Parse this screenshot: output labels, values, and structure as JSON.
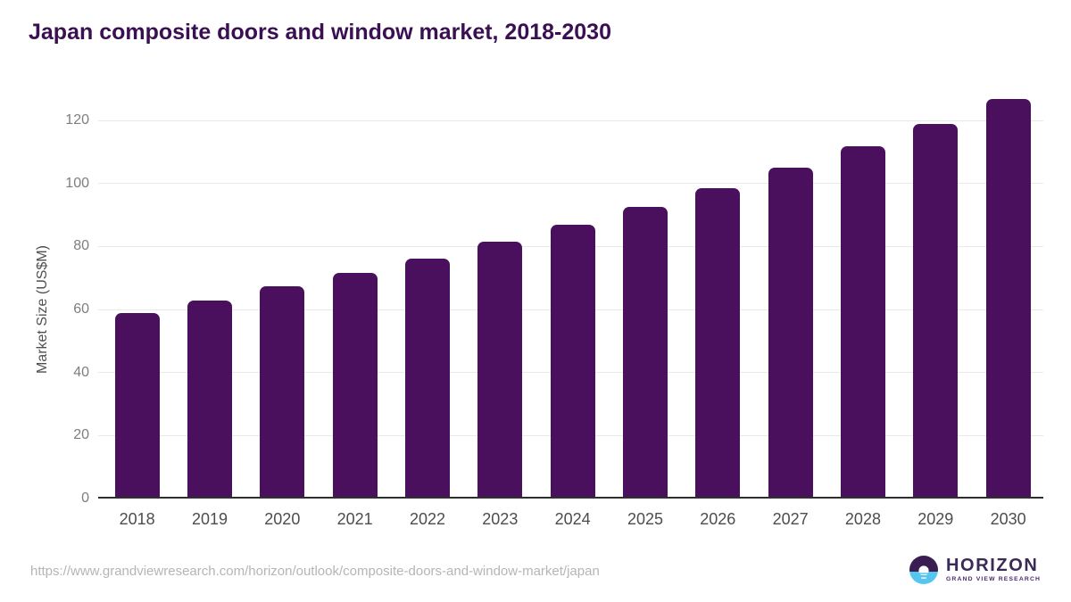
{
  "title": "Japan composite doors and window market, 2018-2030",
  "chart_data": {
    "type": "bar",
    "title": "Japan composite doors and window market, 2018-2030",
    "categories": [
      "2018",
      "2019",
      "2020",
      "2021",
      "2022",
      "2023",
      "2024",
      "2025",
      "2026",
      "2027",
      "2028",
      "2029",
      "2030"
    ],
    "values": [
      58.9,
      62.9,
      67.3,
      71.5,
      76.2,
      81.4,
      86.8,
      92.5,
      98.5,
      105.0,
      111.8,
      118.9,
      126.8
    ],
    "xlabel": "",
    "ylabel": "Market Size (US$M)",
    "ylim": [
      0,
      130
    ],
    "yticks": [
      0,
      20,
      40,
      60,
      80,
      100,
      120
    ],
    "grid": true,
    "legend": false,
    "bar_color": "#4a105e"
  },
  "colors": {
    "title": "#3a1053",
    "bar": "#4a105e",
    "gridline": "#e9e9e9",
    "axis_line": "#2f2f2f",
    "y_tick_text": "#7e7e7e",
    "x_tick_text": "#4d4d4d",
    "url_text": "#b5b5b5",
    "logo_purple": "#3b2a55",
    "logo_dark_half": "#3a1e52",
    "logo_blue_half": "#55c6f0"
  },
  "footer": {
    "source_url": "https://www.grandviewresearch.com/horizon/outlook/composite-doors-and-window-market/japan",
    "logo_name": "HORIZON",
    "logo_subtitle": "GRAND VIEW RESEARCH"
  }
}
